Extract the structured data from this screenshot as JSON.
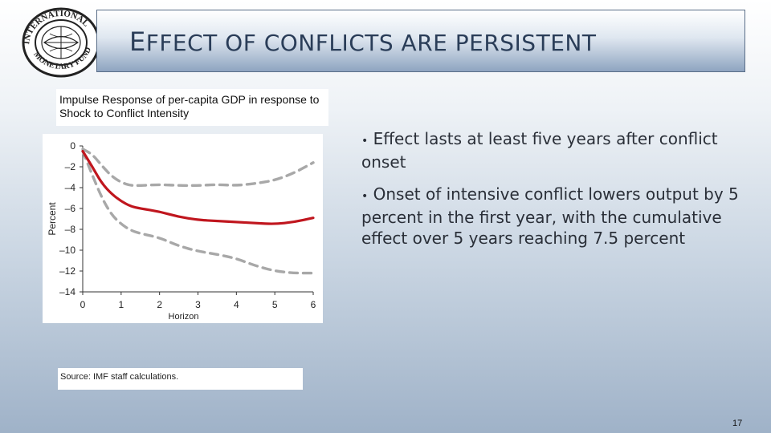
{
  "slide": {
    "title_first": "E",
    "title_rest": "FFECT OF CONFLICTS ARE PERSISTENT",
    "logo_text": "INTERNATIONAL MONETARY FUND",
    "chart_heading": "Impulse Response of per-capita GDP in response to Shock to Conflict Intensity",
    "source": "Source: IMF staff calculations.",
    "page_number": "17",
    "bullets": [
      "Effect lasts at least five years after conflict onset",
      "Onset of intensive conflict lowers output by 5 percent in the first year, with the cumulative effect over 5 years reaching 7.5 percent"
    ]
  },
  "chart_data": {
    "type": "line",
    "title": "",
    "xlabel": "Horizon",
    "ylabel": "Percent",
    "xlim": [
      0,
      6
    ],
    "ylim": [
      -14,
      0
    ],
    "x_ticks": [
      0,
      1,
      2,
      3,
      4,
      5,
      6
    ],
    "y_ticks": [
      0,
      -2,
      -4,
      -6,
      -8,
      -10,
      -12,
      -14
    ],
    "y_tick_labels": [
      "0",
      "–2",
      "–4",
      "–6",
      "–8",
      "–10",
      "–12",
      "–14"
    ],
    "grid": false,
    "series": [
      {
        "style": "solid",
        "color": "#c0161e",
        "x": [
          0,
          0.25,
          0.5,
          0.75,
          1,
          1.25,
          1.5,
          2,
          2.5,
          3,
          3.5,
          4,
          4.5,
          5,
          5.5,
          6
        ],
        "y": [
          -0.5,
          -2.0,
          -3.6,
          -4.6,
          -5.3,
          -5.8,
          -6.0,
          -6.3,
          -6.8,
          -7.1,
          -7.2,
          -7.3,
          -7.4,
          -7.5,
          -7.3,
          -6.9
        ]
      },
      {
        "style": "dashed",
        "color": "#a8a8a8",
        "x": [
          0,
          0.25,
          0.5,
          0.75,
          1,
          1.25,
          1.5,
          2,
          2.5,
          3,
          3.5,
          4,
          4.5,
          5,
          5.5,
          6
        ],
        "y": [
          -0.3,
          -0.8,
          -1.9,
          -2.9,
          -3.5,
          -3.8,
          -3.8,
          -3.7,
          -3.8,
          -3.8,
          -3.7,
          -3.8,
          -3.6,
          -3.3,
          -2.6,
          -1.6
        ]
      },
      {
        "style": "dashed",
        "color": "#a8a8a8",
        "x": [
          0,
          0.25,
          0.5,
          0.75,
          1,
          1.25,
          1.5,
          2,
          2.5,
          3,
          3.5,
          4,
          4.5,
          5,
          5.5,
          6
        ],
        "y": [
          -0.5,
          -2.8,
          -5.0,
          -6.6,
          -7.5,
          -8.1,
          -8.4,
          -8.8,
          -9.6,
          -10.1,
          -10.4,
          -10.8,
          -11.5,
          -12.0,
          -12.2,
          -12.2
        ]
      }
    ]
  }
}
